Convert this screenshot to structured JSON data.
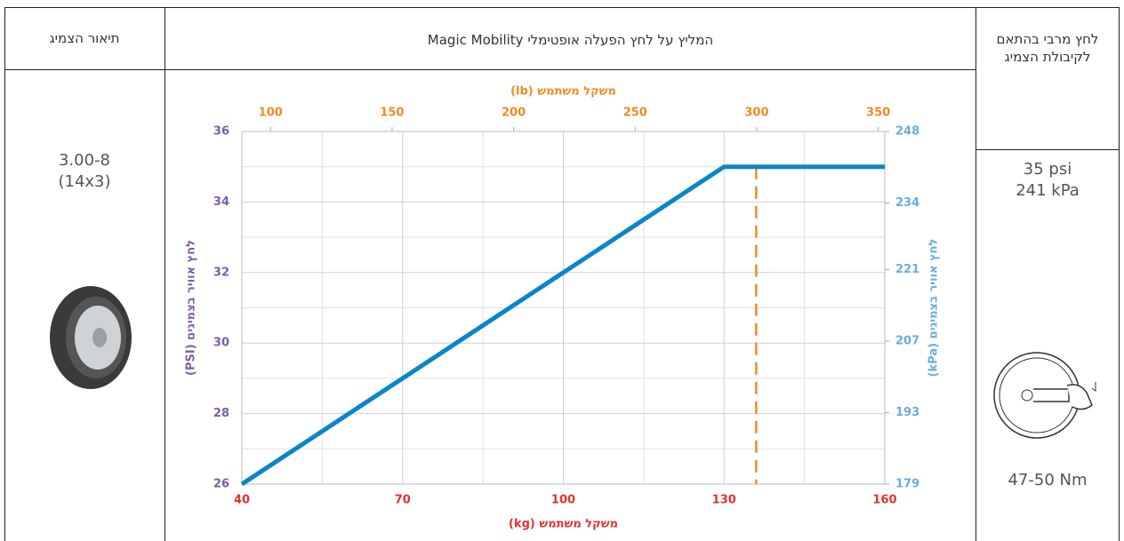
{
  "table": {
    "left_header": "תיאור הצמיג",
    "right_header": "לחץ מרבי בהתאם לקיבולת הצמיג",
    "tire_size": "3.00-8",
    "tire_dims": "(14x3)",
    "pressure_psi": "35 psi",
    "pressure_kpa": "241 kPa",
    "torque": "47-50 Nm"
  },
  "chart_data": {
    "type": "line",
    "title": "המליץ על לחץ הפעלה אופטימלי Magic Mobility",
    "x_label": "משקל משתמש (kg)",
    "x2_label": "משקל משתמש (lb)",
    "y_label": "לחץ אוויר בצמיגים (PSI)",
    "y2_label": "לחץ אוויר בצמיגים (kPa)",
    "x": [
      40,
      130,
      160
    ],
    "values": [
      26,
      35,
      35
    ],
    "color": "#0a86c8",
    "xlim": [
      40,
      160
    ],
    "xticks": [
      40,
      70,
      100,
      130,
      160
    ],
    "x2lim": [
      88.2,
      352.7
    ],
    "x2ticks": [
      100,
      150,
      200,
      250,
      300,
      350
    ],
    "ylim": [
      26,
      36
    ],
    "yticks": [
      26,
      28,
      30,
      32,
      34,
      36
    ],
    "y2lim": [
      179,
      248
    ],
    "y2ticks": [
      179,
      193,
      207,
      221,
      234,
      248
    ],
    "x_color": "#e0322e",
    "x2_color": "#f08a24",
    "y_color": "#7b5ea7",
    "y2_color": "#6aaedc",
    "reference_line": {
      "x": 136,
      "color": "#f08a24"
    },
    "grid": true
  }
}
